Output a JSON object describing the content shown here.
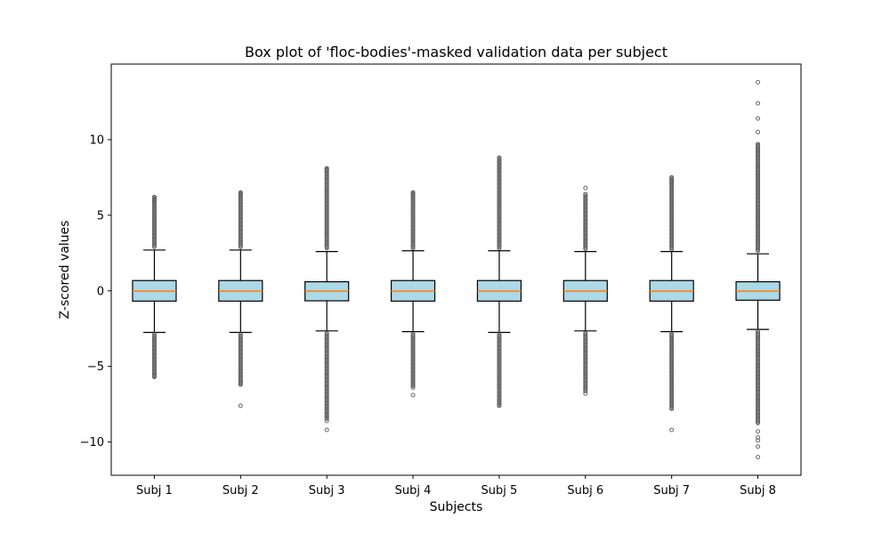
{
  "chart_data": {
    "type": "box",
    "title": "Box plot of 'floc-bodies'-masked validation data per subject",
    "xlabel": "Subjects",
    "ylabel": "Z-scored values",
    "ylim": [
      -12.2,
      15.0
    ],
    "yticks": [
      -10,
      -5,
      0,
      5,
      10
    ],
    "ytick_labels": [
      "−10",
      "−5",
      "0",
      "5",
      "10"
    ],
    "grid": false,
    "colors": {
      "box_fill": "#add8e6",
      "median": "#ff7f0e",
      "flier": "#666666",
      "edge": "#000000"
    },
    "categories": [
      "Subj 1",
      "Subj 2",
      "Subj 3",
      "Subj 4",
      "Subj 5",
      "Subj 6",
      "Subj 7",
      "Subj 8"
    ],
    "boxes": [
      {
        "name": "Subj 1",
        "q1": -0.68,
        "median": -0.02,
        "q3": 0.68,
        "whisker_low": -2.75,
        "whisker_high": 2.7,
        "flier_low_min": -5.7,
        "flier_high_max": 6.2,
        "sparse_fliers": [
          -5.6,
          -5.7,
          6.0,
          6.1,
          6.2
        ]
      },
      {
        "name": "Subj 2",
        "q1": -0.68,
        "median": -0.02,
        "q3": 0.68,
        "whisker_low": -2.75,
        "whisker_high": 2.7,
        "flier_low_min": -6.2,
        "flier_high_max": 6.5,
        "sparse_fliers": [
          -7.6,
          -6.1,
          -6.2,
          6.4,
          6.5
        ]
      },
      {
        "name": "Subj 3",
        "q1": -0.66,
        "median": -0.02,
        "q3": 0.6,
        "whisker_low": -2.65,
        "whisker_high": 2.6,
        "flier_low_min": -8.5,
        "flier_high_max": 8.1,
        "sparse_fliers": [
          -9.2,
          -8.6,
          -8.3,
          8.0,
          8.1
        ]
      },
      {
        "name": "Subj 4",
        "q1": -0.68,
        "median": -0.02,
        "q3": 0.68,
        "whisker_low": -2.7,
        "whisker_high": 2.65,
        "flier_low_min": -6.3,
        "flier_high_max": 6.5,
        "sparse_fliers": [
          -6.9,
          -6.4,
          6.4,
          6.5
        ]
      },
      {
        "name": "Subj 5",
        "q1": -0.68,
        "median": -0.02,
        "q3": 0.68,
        "whisker_low": -2.75,
        "whisker_high": 2.65,
        "flier_low_min": -7.6,
        "flier_high_max": 8.8,
        "sparse_fliers": [
          -7.6,
          -7.5,
          8.2,
          8.5,
          8.8
        ]
      },
      {
        "name": "Subj 6",
        "q1": -0.68,
        "median": -0.02,
        "q3": 0.68,
        "whisker_low": -2.65,
        "whisker_high": 2.6,
        "flier_low_min": -6.7,
        "flier_high_max": 6.3,
        "sparse_fliers": [
          -6.8,
          6.4,
          6.8
        ]
      },
      {
        "name": "Subj 7",
        "q1": -0.68,
        "median": -0.02,
        "q3": 0.68,
        "whisker_low": -2.7,
        "whisker_high": 2.6,
        "flier_low_min": -7.8,
        "flier_high_max": 7.5,
        "sparse_fliers": [
          -9.2,
          -7.8,
          7.3,
          7.5
        ]
      },
      {
        "name": "Subj 8",
        "q1": -0.62,
        "median": -0.02,
        "q3": 0.6,
        "whisker_low": -2.55,
        "whisker_high": 2.45,
        "flier_low_min": -8.8,
        "flier_high_max": 9.7,
        "sparse_fliers": [
          -11.0,
          -10.3,
          -9.9,
          -9.7,
          -9.3,
          9.7,
          10.5,
          11.4,
          12.4,
          13.8
        ]
      }
    ]
  }
}
